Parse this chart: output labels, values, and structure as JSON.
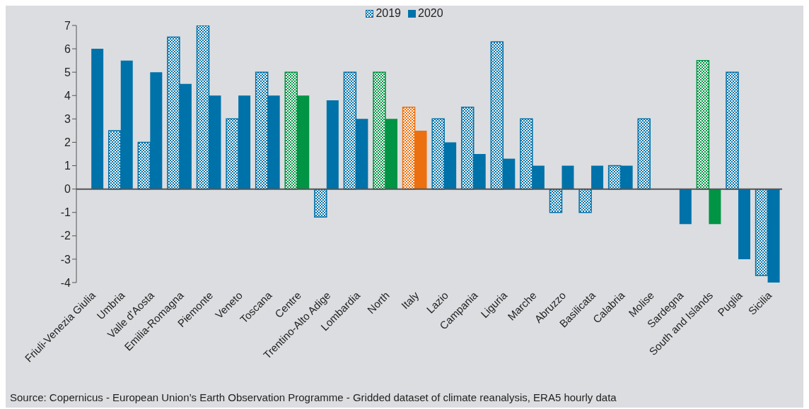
{
  "chart_data": {
    "type": "bar",
    "categories": [
      "Friuli-Venezia Giulia",
      "Umbria",
      "Valle d'Aosta",
      "Emilia-Romagna",
      "Piemonte",
      "Veneto",
      "Toscana",
      "Centre",
      "Trentino-Alto Adige",
      "Lombardia",
      "North",
      "Italy",
      "Lazio",
      "Campania",
      "Liguria",
      "Marche",
      "Abruzzo",
      "Basilicata",
      "Calabria",
      "Molise",
      "Sardegna",
      "South and Islands",
      "Puglia",
      "Sicilia"
    ],
    "series": [
      {
        "name": "2019",
        "color": "#0072aa",
        "values": [
          null,
          2.5,
          2,
          6.5,
          7,
          3,
          5,
          5,
          -1.2,
          5,
          5,
          3.5,
          3,
          3.5,
          6.3,
          3,
          -1,
          -1,
          1,
          3,
          null,
          5.5,
          5,
          -3.7
        ],
        "colors": [
          "#0072aa",
          "#0072aa",
          "#0072aa",
          "#0072aa",
          "#0072aa",
          "#0072aa",
          "#0072aa",
          "#009444",
          "#0072aa",
          "#0072aa",
          "#009444",
          "#ec7010",
          "#0072aa",
          "#0072aa",
          "#0072aa",
          "#0072aa",
          "#0072aa",
          "#0072aa",
          "#0072aa",
          "#0072aa",
          "#0072aa",
          "#009444",
          "#0072aa",
          "#0072aa"
        ]
      },
      {
        "name": "2020",
        "color": "#0072aa",
        "values": [
          6,
          5.5,
          5,
          4.5,
          4,
          4,
          4,
          4,
          3.8,
          3,
          3,
          2.5,
          2,
          1.5,
          1.3,
          1,
          1,
          1,
          1,
          null,
          -1.5,
          -1.5,
          -3,
          -4
        ],
        "colors": [
          "#0072aa",
          "#0072aa",
          "#0072aa",
          "#0072aa",
          "#0072aa",
          "#0072aa",
          "#0072aa",
          "#009444",
          "#0072aa",
          "#0072aa",
          "#009444",
          "#ec7010",
          "#0072aa",
          "#0072aa",
          "#0072aa",
          "#0072aa",
          "#0072aa",
          "#0072aa",
          "#0072aa",
          "#0072aa",
          "#0072aa",
          "#009444",
          "#0072aa",
          "#0072aa"
        ]
      }
    ],
    "ylim": [
      -4,
      7
    ],
    "yticks": [
      -4,
      -3,
      -2,
      -1,
      0,
      1,
      2,
      3,
      4,
      5,
      6,
      7
    ],
    "legend": "top",
    "annotations": [
      "Source: Copernicus - European Union’s Earth Observation Programme - Gridded dataset of climate reanalysis, ERA5 hourly data"
    ]
  }
}
